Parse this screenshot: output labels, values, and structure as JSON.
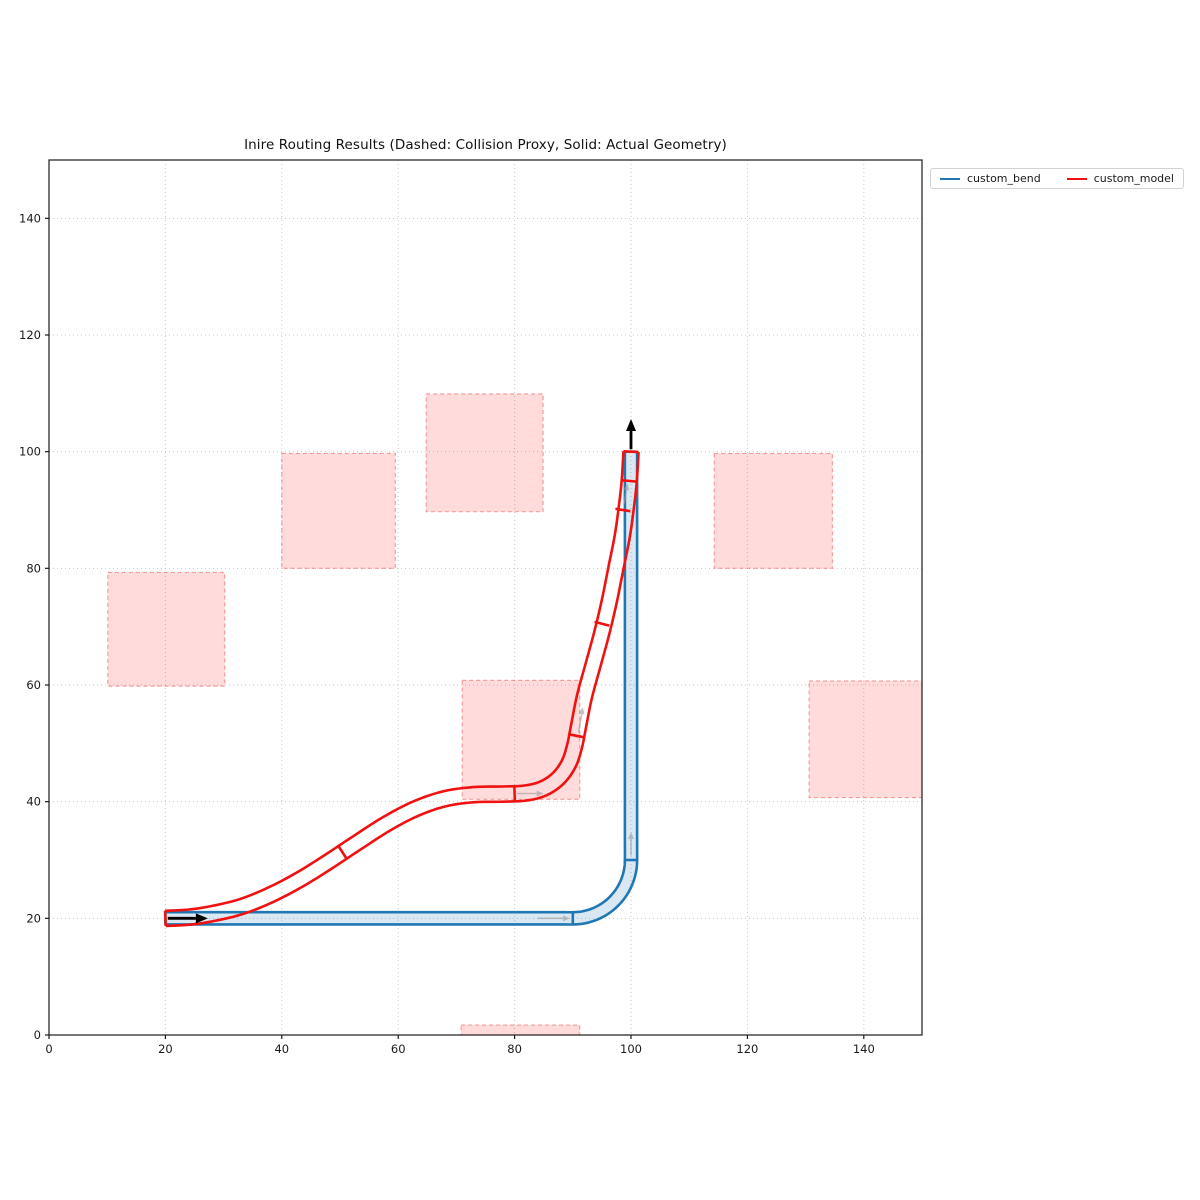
{
  "chart_data": {
    "type": "line",
    "title": "Inire Routing Results (Dashed: Collision Proxy, Solid: Actual Geometry)",
    "xlim": [
      0,
      150
    ],
    "ylim": [
      0,
      150
    ],
    "xticks": [
      0,
      20,
      40,
      60,
      80,
      100,
      120,
      140
    ],
    "yticks": [
      0,
      20,
      40,
      60,
      80,
      100,
      120,
      140
    ],
    "grid": true,
    "legend": {
      "position": "upper-right-outside",
      "items": [
        {
          "label": "custom_bend",
          "color": "#1f77b4"
        },
        {
          "label": "custom_model",
          "color": "#f01111"
        }
      ]
    },
    "colors": {
      "grid": "#c8c8c8",
      "spine": "#1a1a1a",
      "obstacle_fill": "rgba(255,30,30,0.16)",
      "obstacle_edge": "rgba(240,80,80,0.55)",
      "gray_arrow": "#9b9b9b",
      "black_arrow": "#000000"
    },
    "obstacles": [
      {
        "x": 10.1,
        "y": 59.8,
        "w": 20.1,
        "h": 19.5
      },
      {
        "x": 40.0,
        "y": 80.0,
        "w": 19.5,
        "h": 19.7
      },
      {
        "x": 64.8,
        "y": 89.7,
        "w": 20.1,
        "h": 20.2
      },
      {
        "x": 114.3,
        "y": 80.0,
        "w": 20.3,
        "h": 19.7
      },
      {
        "x": 71.0,
        "y": 40.4,
        "w": 20.2,
        "h": 20.4
      },
      {
        "x": 130.6,
        "y": 40.7,
        "w": 19.6,
        "h": 20.0
      },
      {
        "x": 70.8,
        "y": 0.0,
        "w": 20.4,
        "h": 1.7
      }
    ],
    "pipes": [
      {
        "name": "custom_bend",
        "color": "#1f77b4",
        "half_width": 1.05,
        "fill": "rgba(31,119,180,0.17)",
        "centerline": [
          [
            20,
            20
          ],
          [
            30,
            20
          ],
          [
            45,
            20
          ],
          [
            60,
            20
          ],
          [
            75,
            20
          ],
          [
            84,
            20
          ],
          [
            88,
            20
          ],
          [
            90,
            20
          ],
          [
            91.56,
            20.12
          ],
          [
            93.09,
            20.49
          ],
          [
            94.54,
            21.09
          ],
          [
            95.88,
            21.91
          ],
          [
            97.07,
            22.93
          ],
          [
            98.09,
            24.12
          ],
          [
            98.91,
            25.46
          ],
          [
            99.51,
            26.91
          ],
          [
            99.88,
            28.44
          ],
          [
            100,
            30
          ],
          [
            100,
            34
          ],
          [
            100,
            45
          ],
          [
            100,
            60
          ],
          [
            100,
            80
          ],
          [
            100,
            100
          ]
        ],
        "joints": [
          {
            "x": 90,
            "y": 20,
            "deg": 90
          },
          {
            "x": 100,
            "y": 30,
            "deg": 0
          }
        ]
      },
      {
        "name": "custom_model",
        "color": "#f01111",
        "half_width": 1.3,
        "fill": "none",
        "centerline": [
          [
            20,
            20
          ],
          [
            24,
            20.2
          ],
          [
            28,
            20.8
          ],
          [
            33,
            22
          ],
          [
            38,
            24
          ],
          [
            43,
            26.6
          ],
          [
            48,
            29.7
          ],
          [
            53,
            33
          ],
          [
            58,
            36.2
          ],
          [
            63,
            38.8
          ],
          [
            68,
            40.5
          ],
          [
            73,
            41.2
          ],
          [
            78,
            41.3
          ],
          [
            82,
            41.5
          ],
          [
            85,
            42.3
          ],
          [
            87.5,
            44
          ],
          [
            89.3,
            46.5
          ],
          [
            90.3,
            49.5
          ],
          [
            91,
            53
          ],
          [
            92,
            58
          ],
          [
            93.5,
            63.5
          ],
          [
            95,
            69
          ],
          [
            96.3,
            74.5
          ],
          [
            97.4,
            80
          ],
          [
            98.5,
            85.5
          ],
          [
            99.2,
            90.5
          ],
          [
            99.7,
            95
          ],
          [
            100,
            100
          ]
        ],
        "joints": [
          {
            "x": 50.5,
            "y": 31.2,
            "deg": 123
          },
          {
            "x": 80.0,
            "y": 41.4,
            "deg": 92
          },
          {
            "x": 90.6,
            "y": 51.3,
            "deg": -11
          },
          {
            "x": 95.0,
            "y": 70.5,
            "deg": -14
          },
          {
            "x": 98.6,
            "y": 90.0,
            "deg": -9
          },
          {
            "x": 99.5,
            "y": 95.0,
            "deg": -5
          }
        ]
      }
    ],
    "gray_arrows": [
      {
        "x1": 84.0,
        "y1": 20.0,
        "x2": 89.5,
        "y2": 20.0
      },
      {
        "x1": 100.0,
        "y1": 30.8,
        "x2": 100.0,
        "y2": 34.8
      },
      {
        "x1": 80.4,
        "y1": 41.4,
        "x2": 85.0,
        "y2": 41.4
      },
      {
        "x1": 91.0,
        "y1": 51.8,
        "x2": 91.7,
        "y2": 56.2
      },
      {
        "x1": 98.8,
        "y1": 91.0,
        "x2": 99.4,
        "y2": 94.6
      }
    ],
    "black_arrows": [
      {
        "x1": 20.4,
        "y1": 20.0,
        "x2": 27.3,
        "y2": 20.0
      },
      {
        "x1": 100.0,
        "y1": 100.4,
        "x2": 100.0,
        "y2": 105.6
      }
    ]
  }
}
